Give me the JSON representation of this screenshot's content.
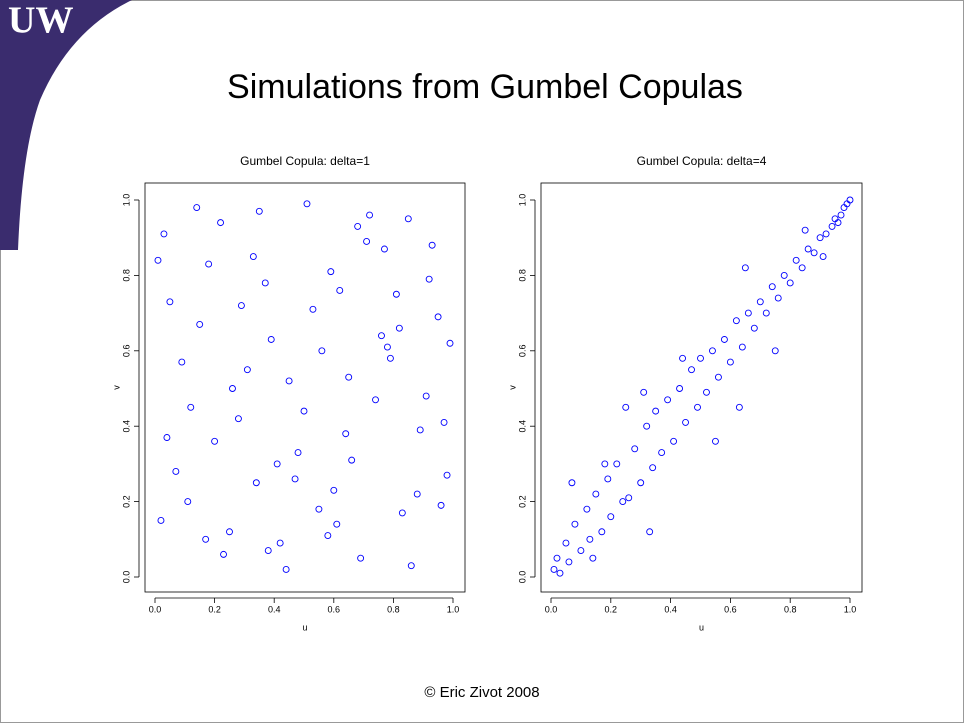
{
  "logo": "UW",
  "slide": {
    "title": "Simulations from Gumbel Copulas",
    "footer": "© Eric Zivot 2008"
  },
  "chart_data": [
    {
      "type": "scatter",
      "title": "Gumbel Copula: delta=1",
      "xlabel": "u",
      "ylabel": "v",
      "color": "#0000ff",
      "x": [
        0.03,
        0.12,
        0.25,
        0.37,
        0.48,
        0.56,
        0.69,
        0.77,
        0.88,
        0.95,
        0.07,
        0.18,
        0.31,
        0.42,
        0.53,
        0.64,
        0.72,
        0.83,
        0.91,
        0.99,
        0.02,
        0.15,
        0.22,
        0.34,
        0.45,
        0.59,
        0.66,
        0.79,
        0.86,
        0.97,
        0.05,
        0.11,
        0.28,
        0.39,
        0.51,
        0.61,
        0.74,
        0.81,
        0.93,
        0.44,
        0.09,
        0.2,
        0.33,
        0.47,
        0.58,
        0.68,
        0.76,
        0.89,
        0.96,
        0.14,
        0.26,
        0.6,
        0.82,
        0.04,
        0.38,
        0.71,
        0.5,
        0.17,
        0.92,
        0.65,
        0.29,
        0.85,
        0.01,
        0.55,
        0.41,
        0.78,
        0.23,
        0.98,
        0.62,
        0.35
      ],
      "values": [
        0.91,
        0.45,
        0.12,
        0.78,
        0.33,
        0.6,
        0.05,
        0.87,
        0.22,
        0.69,
        0.28,
        0.83,
        0.55,
        0.09,
        0.71,
        0.38,
        0.96,
        0.17,
        0.48,
        0.62,
        0.15,
        0.67,
        0.94,
        0.25,
        0.52,
        0.81,
        0.31,
        0.58,
        0.03,
        0.41,
        0.73,
        0.2,
        0.42,
        0.63,
        0.99,
        0.14,
        0.47,
        0.75,
        0.88,
        0.02,
        0.57,
        0.36,
        0.85,
        0.26,
        0.11,
        0.93,
        0.64,
        0.39,
        0.19,
        0.98,
        0.5,
        0.23,
        0.66,
        0.37,
        0.07,
        0.89,
        0.44,
        0.1,
        0.79,
        0.53,
        0.72,
        0.95,
        0.84,
        0.18,
        0.3,
        0.61,
        0.06,
        0.27,
        0.76,
        0.97
      ],
      "xlim": [
        0,
        1
      ],
      "ylim": [
        0,
        1
      ],
      "xticks": [
        {
          "value": 0,
          "label": "0.0"
        },
        0.2,
        0.4,
        0.6,
        0.8,
        {
          "value": 1,
          "label": "1.0"
        }
      ],
      "yticks": [
        {
          "value": 0,
          "label": "0.0"
        },
        0.2,
        0.4,
        0.6,
        0.8,
        {
          "value": 1,
          "label": "1.0"
        }
      ]
    },
    {
      "type": "scatter",
      "title": "Gumbel Copula: delta=4",
      "xlabel": "u",
      "ylabel": "v",
      "color": "#0000ff",
      "x": [
        0.01,
        0.02,
        0.03,
        0.05,
        0.06,
        0.08,
        0.1,
        0.12,
        0.13,
        0.15,
        0.17,
        0.19,
        0.2,
        0.22,
        0.24,
        0.26,
        0.28,
        0.3,
        0.32,
        0.34,
        0.35,
        0.37,
        0.39,
        0.41,
        0.43,
        0.45,
        0.47,
        0.49,
        0.5,
        0.52,
        0.54,
        0.56,
        0.58,
        0.6,
        0.62,
        0.64,
        0.66,
        0.68,
        0.7,
        0.72,
        0.74,
        0.76,
        0.78,
        0.8,
        0.82,
        0.84,
        0.86,
        0.88,
        0.9,
        0.92,
        0.94,
        0.95,
        0.96,
        0.97,
        0.98,
        0.99,
        1.0,
        0.07,
        0.14,
        0.25,
        0.33,
        0.44,
        0.55,
        0.65,
        0.75,
        0.85,
        0.91,
        0.31,
        0.18,
        0.63
      ],
      "values": [
        0.02,
        0.05,
        0.01,
        0.09,
        0.04,
        0.14,
        0.07,
        0.18,
        0.1,
        0.22,
        0.12,
        0.26,
        0.16,
        0.3,
        0.2,
        0.21,
        0.34,
        0.25,
        0.4,
        0.29,
        0.44,
        0.33,
        0.47,
        0.36,
        0.5,
        0.41,
        0.55,
        0.45,
        0.58,
        0.49,
        0.6,
        0.53,
        0.63,
        0.57,
        0.68,
        0.61,
        0.7,
        0.66,
        0.73,
        0.7,
        0.77,
        0.74,
        0.8,
        0.78,
        0.84,
        0.82,
        0.87,
        0.86,
        0.9,
        0.91,
        0.93,
        0.95,
        0.94,
        0.96,
        0.98,
        0.99,
        1.0,
        0.25,
        0.05,
        0.45,
        0.12,
        0.58,
        0.36,
        0.82,
        0.6,
        0.92,
        0.85,
        0.49,
        0.3,
        0.45
      ],
      "xlim": [
        0,
        1
      ],
      "ylim": [
        0,
        1
      ],
      "xticks": [
        {
          "value": 0,
          "label": "0.0"
        },
        0.2,
        0.4,
        0.6,
        0.8,
        {
          "value": 1,
          "label": "1.0"
        }
      ],
      "yticks": [
        {
          "value": 0,
          "label": "0.0"
        },
        0.2,
        0.4,
        0.6,
        0.8,
        {
          "value": 1,
          "label": "1.0"
        }
      ]
    }
  ]
}
